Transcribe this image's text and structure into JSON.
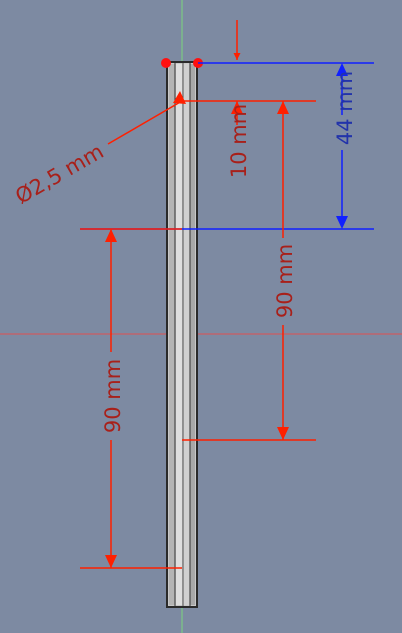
{
  "colors": {
    "background": "#7d8aa2",
    "dimension_red": "#ff2000",
    "dimension_text_red": "#a8201a",
    "dimension_blue": "#1020ff",
    "dimension_text_blue": "#2233aa",
    "axis_green": "#7cd67c",
    "axis_red": "#e05050",
    "part_edge": "#2a2a2a",
    "part_fill_light": "#d4d4d4",
    "part_fill_mid": "#a8a8a8",
    "vertex_red": "#ff1010"
  },
  "dimensions": {
    "diameter_label": "Ø2,5 mm",
    "top_offset_label": "10 mm",
    "blue_length_label": "44 mm",
    "right_length_label": "90 mm",
    "left_length_label": "90 mm"
  }
}
